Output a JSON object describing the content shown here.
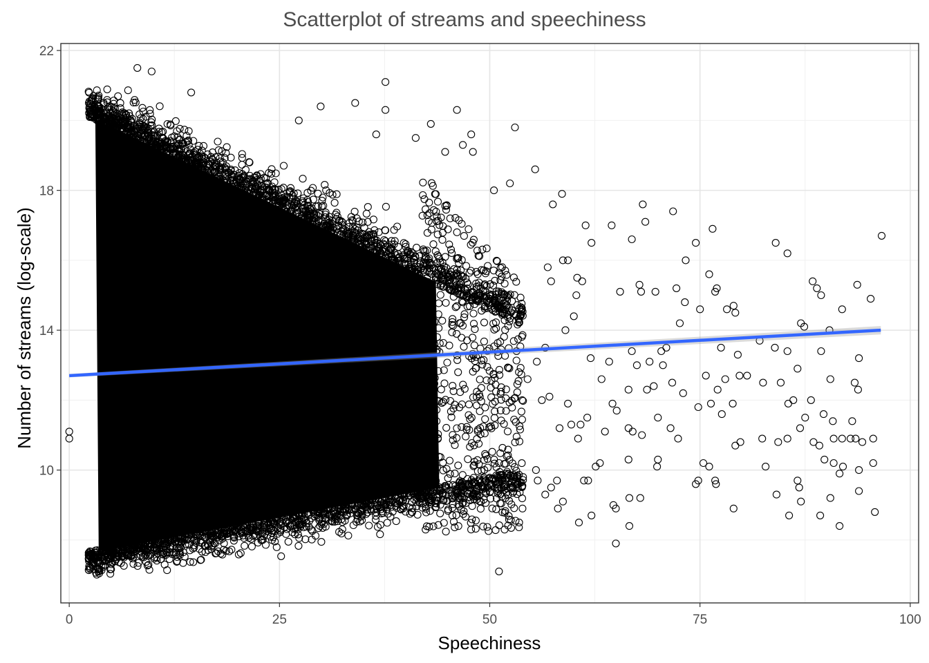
{
  "chart_data": {
    "type": "scatter",
    "title": "Scatterplot of streams and speechiness",
    "xlabel": "Speechiness",
    "ylabel": "Number of streams (log-scale)",
    "xlim": [
      -1,
      101
    ],
    "ylim": [
      6.2,
      22.2
    ],
    "x_ticks": [
      0,
      25,
      50,
      75,
      100
    ],
    "x_tick_labels": [
      "0",
      "25",
      "50",
      "75",
      "100"
    ],
    "y_ticks": [
      10,
      14,
      18,
      22
    ],
    "y_tick_labels": [
      "10",
      "14",
      "18",
      "22"
    ],
    "grid": true,
    "legend": "none",
    "trend_line": {
      "name": "linear fit",
      "color": "#3366FF",
      "x": [
        0,
        96.5
      ],
      "y": [
        12.7,
        14.0
      ]
    },
    "dense_region": {
      "x": [
        2.3,
        50
      ],
      "y": [
        7.0,
        20.9
      ]
    },
    "sparse_points": [
      [
        0.0,
        11.1
      ],
      [
        0.0,
        10.9
      ],
      [
        8.1,
        21.5
      ],
      [
        9.8,
        21.4
      ],
      [
        37.6,
        21.1
      ],
      [
        37.6,
        20.3
      ],
      [
        14.5,
        20.8
      ],
      [
        29.9,
        20.4
      ],
      [
        46.1,
        20.3
      ],
      [
        34.0,
        20.5
      ],
      [
        27.3,
        20.0
      ],
      [
        43.0,
        19.9
      ],
      [
        36.5,
        19.6
      ],
      [
        47.8,
        19.6
      ],
      [
        53.0,
        19.8
      ],
      [
        46.8,
        19.3
      ],
      [
        48.0,
        19.1
      ],
      [
        41.2,
        19.5
      ],
      [
        44.7,
        19.1
      ],
      [
        55.4,
        18.6
      ],
      [
        52.4,
        18.2
      ],
      [
        50.5,
        18.0
      ],
      [
        58.6,
        17.9
      ],
      [
        57.5,
        17.6
      ],
      [
        61.4,
        17.0
      ],
      [
        64.5,
        17.0
      ],
      [
        66.9,
        16.6
      ],
      [
        68.2,
        17.6
      ],
      [
        68.5,
        17.1
      ],
      [
        71.8,
        17.4
      ],
      [
        76.5,
        16.9
      ],
      [
        74.5,
        16.5
      ],
      [
        84.0,
        16.5
      ],
      [
        85.4,
        16.2
      ],
      [
        96.6,
        16.7
      ],
      [
        62.1,
        16.5
      ],
      [
        58.7,
        16.0
      ],
      [
        59.3,
        16.0
      ],
      [
        60.4,
        15.5
      ],
      [
        61.0,
        15.4
      ],
      [
        65.5,
        15.1
      ],
      [
        67.8,
        15.3
      ],
      [
        68.0,
        15.1
      ],
      [
        69.7,
        15.1
      ],
      [
        72.2,
        15.2
      ],
      [
        73.3,
        16.0
      ],
      [
        76.1,
        15.6
      ],
      [
        77.0,
        15.2
      ],
      [
        76.8,
        15.1
      ],
      [
        78.2,
        14.6
      ],
      [
        79.0,
        14.7
      ],
      [
        79.2,
        14.5
      ],
      [
        73.2,
        14.8
      ],
      [
        72.6,
        14.2
      ],
      [
        75.0,
        14.6
      ],
      [
        88.4,
        15.4
      ],
      [
        88.9,
        15.2
      ],
      [
        89.4,
        15.0
      ],
      [
        93.7,
        15.3
      ],
      [
        91.9,
        14.6
      ],
      [
        95.3,
        14.9
      ],
      [
        87.0,
        14.2
      ],
      [
        87.4,
        14.1
      ],
      [
        90.4,
        14.0
      ],
      [
        82.1,
        13.7
      ],
      [
        83.9,
        13.5
      ],
      [
        85.4,
        13.4
      ],
      [
        89.4,
        13.4
      ],
      [
        93.9,
        13.2
      ],
      [
        77.5,
        13.5
      ],
      [
        79.5,
        13.3
      ],
      [
        70.4,
        13.4
      ],
      [
        71.0,
        13.5
      ],
      [
        70.6,
        13.0
      ],
      [
        69.0,
        13.1
      ],
      [
        66.9,
        13.4
      ],
      [
        67.5,
        13.0
      ],
      [
        64.2,
        13.1
      ],
      [
        62.0,
        13.2
      ],
      [
        63.3,
        12.6
      ],
      [
        66.5,
        12.3
      ],
      [
        68.7,
        12.3
      ],
      [
        69.5,
        12.4
      ],
      [
        71.7,
        12.5
      ],
      [
        73.0,
        12.2
      ],
      [
        75.7,
        12.7
      ],
      [
        77.1,
        12.3
      ],
      [
        78.0,
        12.6
      ],
      [
        79.7,
        12.7
      ],
      [
        80.6,
        12.7
      ],
      [
        82.5,
        12.5
      ],
      [
        84.6,
        12.5
      ],
      [
        86.6,
        12.9
      ],
      [
        86.1,
        12.0
      ],
      [
        88.2,
        12.0
      ],
      [
        90.5,
        12.6
      ],
      [
        93.4,
        12.5
      ],
      [
        93.8,
        12.3
      ],
      [
        85.5,
        11.9
      ],
      [
        78.9,
        11.9
      ],
      [
        76.3,
        11.9
      ],
      [
        77.6,
        11.6
      ],
      [
        74.8,
        11.8
      ],
      [
        70.0,
        11.5
      ],
      [
        64.6,
        11.9
      ],
      [
        65.1,
        11.7
      ],
      [
        61.6,
        11.5
      ],
      [
        60.8,
        11.3
      ],
      [
        59.7,
        11.3
      ],
      [
        63.7,
        11.1
      ],
      [
        66.5,
        11.2
      ],
      [
        67.0,
        11.1
      ],
      [
        68.1,
        11.0
      ],
      [
        71.5,
        11.2
      ],
      [
        72.4,
        10.9
      ],
      [
        79.8,
        10.8
      ],
      [
        82.4,
        10.9
      ],
      [
        84.3,
        10.8
      ],
      [
        85.4,
        10.9
      ],
      [
        86.9,
        11.2
      ],
      [
        87.5,
        11.5
      ],
      [
        88.5,
        10.8
      ],
      [
        89.2,
        10.7
      ],
      [
        90.9,
        10.9
      ],
      [
        91.9,
        10.9
      ],
      [
        92.9,
        10.9
      ],
      [
        93.5,
        10.9
      ],
      [
        94.3,
        10.8
      ],
      [
        95.6,
        10.9
      ],
      [
        89.7,
        11.6
      ],
      [
        90.8,
        11.4
      ],
      [
        93.1,
        11.4
      ],
      [
        75.4,
        10.2
      ],
      [
        76.1,
        10.1
      ],
      [
        70.0,
        10.3
      ],
      [
        69.9,
        10.1
      ],
      [
        63.1,
        10.2
      ],
      [
        62.6,
        10.1
      ],
      [
        66.5,
        10.3
      ],
      [
        79.2,
        10.7
      ],
      [
        82.8,
        10.1
      ],
      [
        89.8,
        10.3
      ],
      [
        90.9,
        10.2
      ],
      [
        92.0,
        10.1
      ],
      [
        93.9,
        10.0
      ],
      [
        95.6,
        10.2
      ],
      [
        91.6,
        9.9
      ],
      [
        74.5,
        9.6
      ],
      [
        74.8,
        9.7
      ],
      [
        76.9,
        9.6
      ],
      [
        76.8,
        9.7
      ],
      [
        84.1,
        9.3
      ],
      [
        86.6,
        9.7
      ],
      [
        86.8,
        9.5
      ],
      [
        87.0,
        9.1
      ],
      [
        90.5,
        9.2
      ],
      [
        93.9,
        9.4
      ],
      [
        95.8,
        8.8
      ],
      [
        91.6,
        8.4
      ],
      [
        89.3,
        8.7
      ],
      [
        85.6,
        8.7
      ],
      [
        79.0,
        8.9
      ],
      [
        67.9,
        9.2
      ],
      [
        66.6,
        9.2
      ],
      [
        64.7,
        9.0
      ],
      [
        65.0,
        8.9
      ],
      [
        62.1,
        8.7
      ],
      [
        60.6,
        8.5
      ],
      [
        58.1,
        8.9
      ],
      [
        58.7,
        9.1
      ],
      [
        61.2,
        9.7
      ],
      [
        61.7,
        9.7
      ],
      [
        66.6,
        8.4
      ],
      [
        65.0,
        7.9
      ],
      [
        51.1,
        7.1
      ],
      [
        53.5,
        8.5
      ],
      [
        53.9,
        8.9
      ],
      [
        55.5,
        10.0
      ],
      [
        55.7,
        9.7
      ],
      [
        57.3,
        9.5
      ],
      [
        56.6,
        9.3
      ],
      [
        58.0,
        9.7
      ],
      [
        60.5,
        10.9
      ],
      [
        59.3,
        11.9
      ],
      [
        56.2,
        12.0
      ],
      [
        57.1,
        12.1
      ],
      [
        58.3,
        11.2
      ],
      [
        54.5,
        12.6
      ],
      [
        55.6,
        13.1
      ],
      [
        56.6,
        13.5
      ],
      [
        59.0,
        14.0
      ],
      [
        60.0,
        14.4
      ],
      [
        60.3,
        15.0
      ],
      [
        57.3,
        15.4
      ],
      [
        56.9,
        15.8
      ]
    ]
  }
}
